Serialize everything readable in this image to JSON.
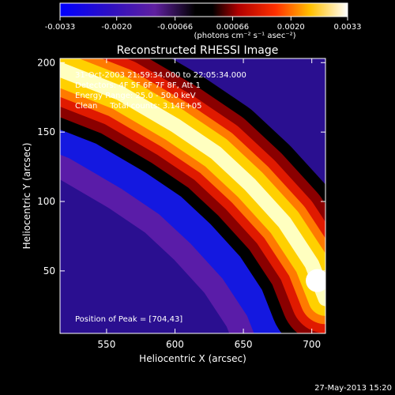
{
  "chart_data": {
    "type": "heatmap",
    "title": "Reconstructed RHESSI Image",
    "xlabel": "Heliocentric X (arcsec)",
    "ylabel": "Heliocentric Y (arcsec)",
    "xlim": [
      516,
      710
    ],
    "ylim": [
      5,
      203
    ],
    "x_ticks": [
      "550",
      "600",
      "650",
      "700"
    ],
    "x_tick_values": [
      550,
      600,
      650,
      700
    ],
    "y_ticks": [
      "50",
      "100",
      "150",
      "200"
    ],
    "y_tick_values": [
      50,
      100,
      150,
      200
    ],
    "colorbar": {
      "min": -0.0033,
      "max": 0.0033,
      "tick_labels": [
        "-0.0033",
        "-0.0020",
        "-0.00066",
        "0.00066",
        "0.0020",
        "0.0033"
      ],
      "tick_values": [
        -0.0033,
        -0.002,
        -0.00066,
        0.00066,
        0.002,
        0.0033
      ],
      "unit_label": "(photons cm⁻² s⁻¹ asec⁻²)"
    },
    "annotations": {
      "time_range": "31-Oct-2003 21:59:34.000 to 22:05:34.000",
      "detectors": "Detectors: 4F 5F 6F 7F 8F, Att 1",
      "energy": "Energy Range: 25.0 - 50.0 keV",
      "clean": "Clean     Total counts: 3.14E+05",
      "peak": "Position of Peak = [704,43]"
    },
    "peak": {
      "x": 704,
      "y": 43
    },
    "ridge": {
      "points": [
        [
          516,
          195
        ],
        [
          560,
          178
        ],
        [
          600,
          155
        ],
        [
          630,
          135
        ],
        [
          655,
          112
        ],
        [
          680,
          85
        ],
        [
          700,
          55
        ],
        [
          710,
          30
        ]
      ],
      "width": 24,
      "peak_value": 0.0033
    },
    "background_value": -0.0028,
    "shadow_offset": 28
  },
  "footer": {
    "date": "27-May-2013 15:20"
  }
}
